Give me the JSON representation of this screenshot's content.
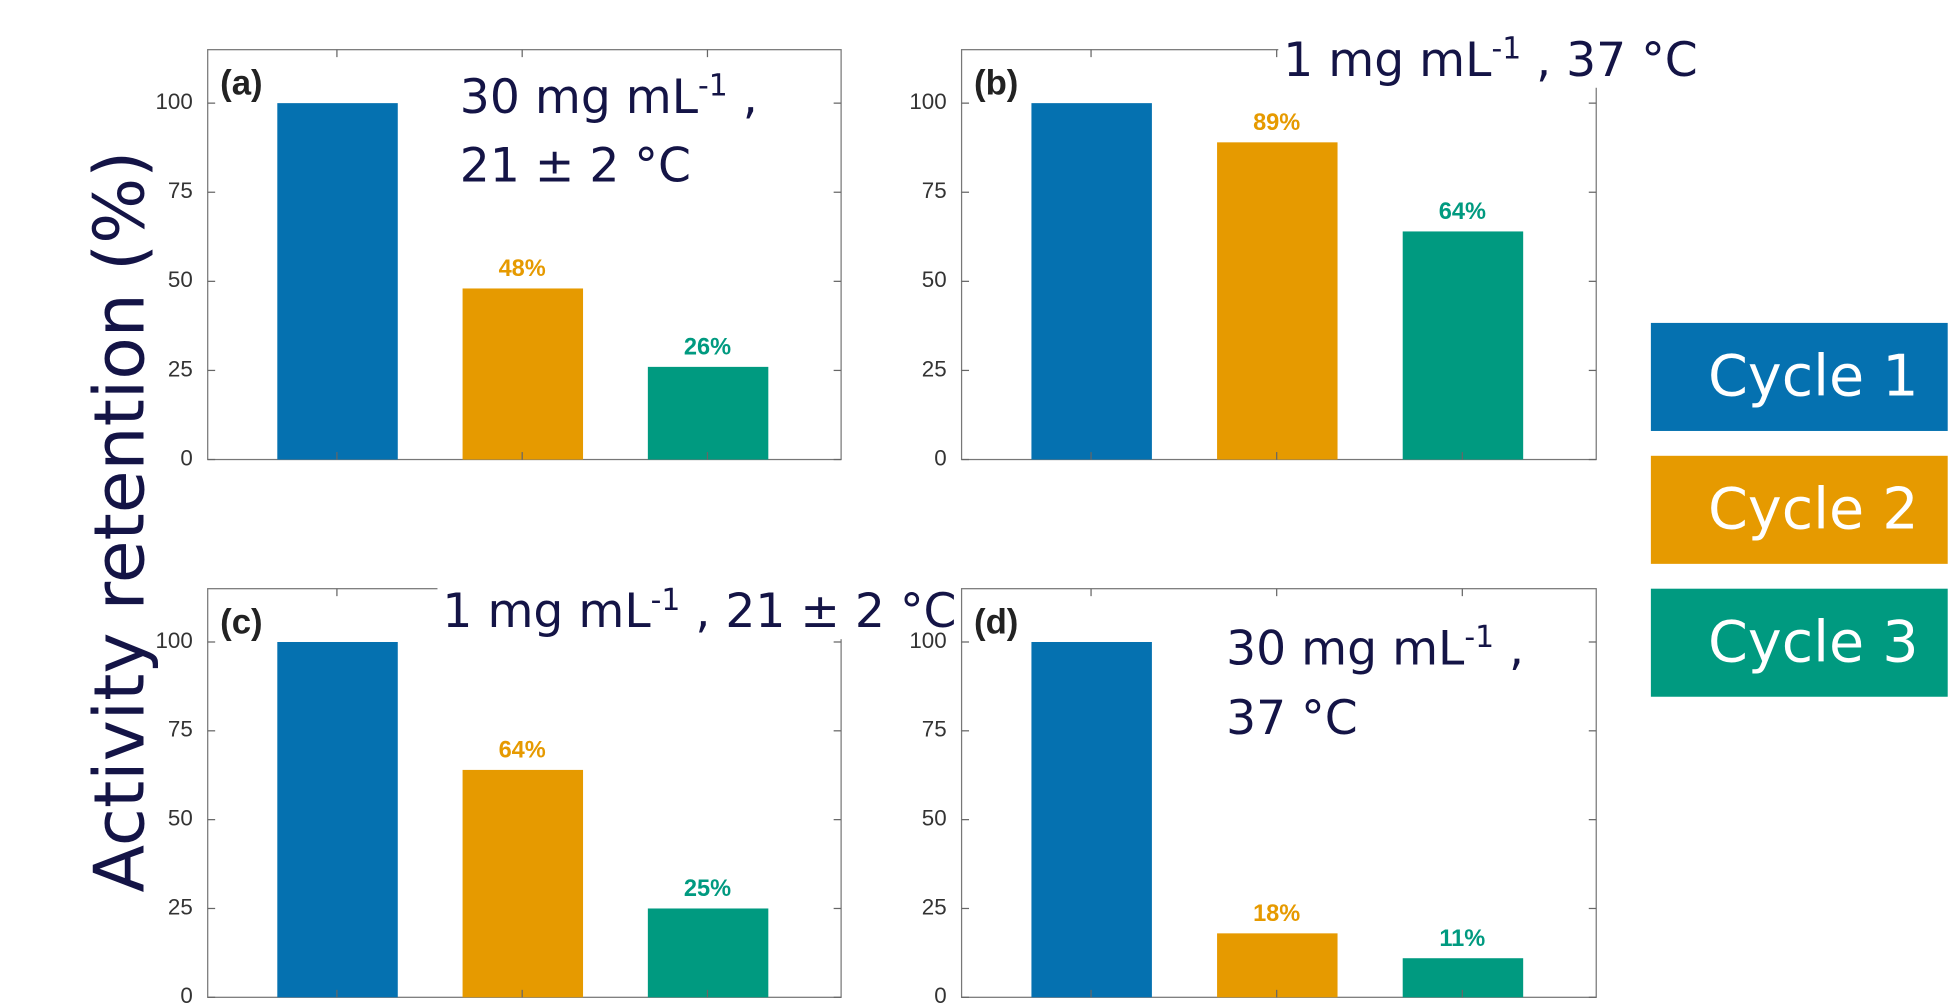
{
  "y_label": "Activity retention (%)",
  "legend": [
    {
      "name": "Cycle 1",
      "color": "#0571b0"
    },
    {
      "name": "Cycle 2",
      "color": "#e69a00"
    },
    {
      "name": "Cycle 3",
      "color": "#009a80"
    }
  ],
  "chart_data": [
    {
      "type": "bar",
      "panel_label": "(a)",
      "annotation": [
        {
          "text": "30 mg mL",
          "sup": "-1",
          "tail": " ,"
        },
        {
          "text": "21 ± 2 °C"
        }
      ],
      "values": [
        100,
        48,
        26
      ],
      "value_labels": [
        null,
        "48%",
        "26%"
      ],
      "ylim": [
        0,
        115
      ],
      "yticks": [
        0,
        25,
        50,
        75,
        100
      ]
    },
    {
      "type": "bar",
      "panel_label": "(b)",
      "annotation": [
        {
          "text": "1 mg mL",
          "sup": "-1",
          "tail": " , 37 °C"
        }
      ],
      "values": [
        100,
        89,
        64
      ],
      "value_labels": [
        null,
        "89%",
        "64%"
      ],
      "ylim": [
        0,
        115
      ],
      "yticks": [
        0,
        25,
        50,
        75,
        100
      ]
    },
    {
      "type": "bar",
      "panel_label": "(c)",
      "annotation": [
        {
          "text": "1 mg mL",
          "sup": "-1",
          "tail": " , 21 ± 2 °C"
        }
      ],
      "values": [
        100,
        64,
        25
      ],
      "value_labels": [
        null,
        "64%",
        "25%"
      ],
      "ylim": [
        0,
        115
      ],
      "yticks": [
        0,
        25,
        50,
        75,
        100
      ]
    },
    {
      "type": "bar",
      "panel_label": "(d)",
      "annotation": [
        {
          "text": "30 mg mL",
          "sup": "-1",
          "tail": " ,"
        },
        {
          "text": "37 °C"
        }
      ],
      "values": [
        100,
        18,
        11
      ],
      "value_labels": [
        null,
        "18%",
        "11%"
      ],
      "ylim": [
        0,
        115
      ],
      "yticks": [
        0,
        25,
        50,
        75,
        100
      ]
    }
  ]
}
